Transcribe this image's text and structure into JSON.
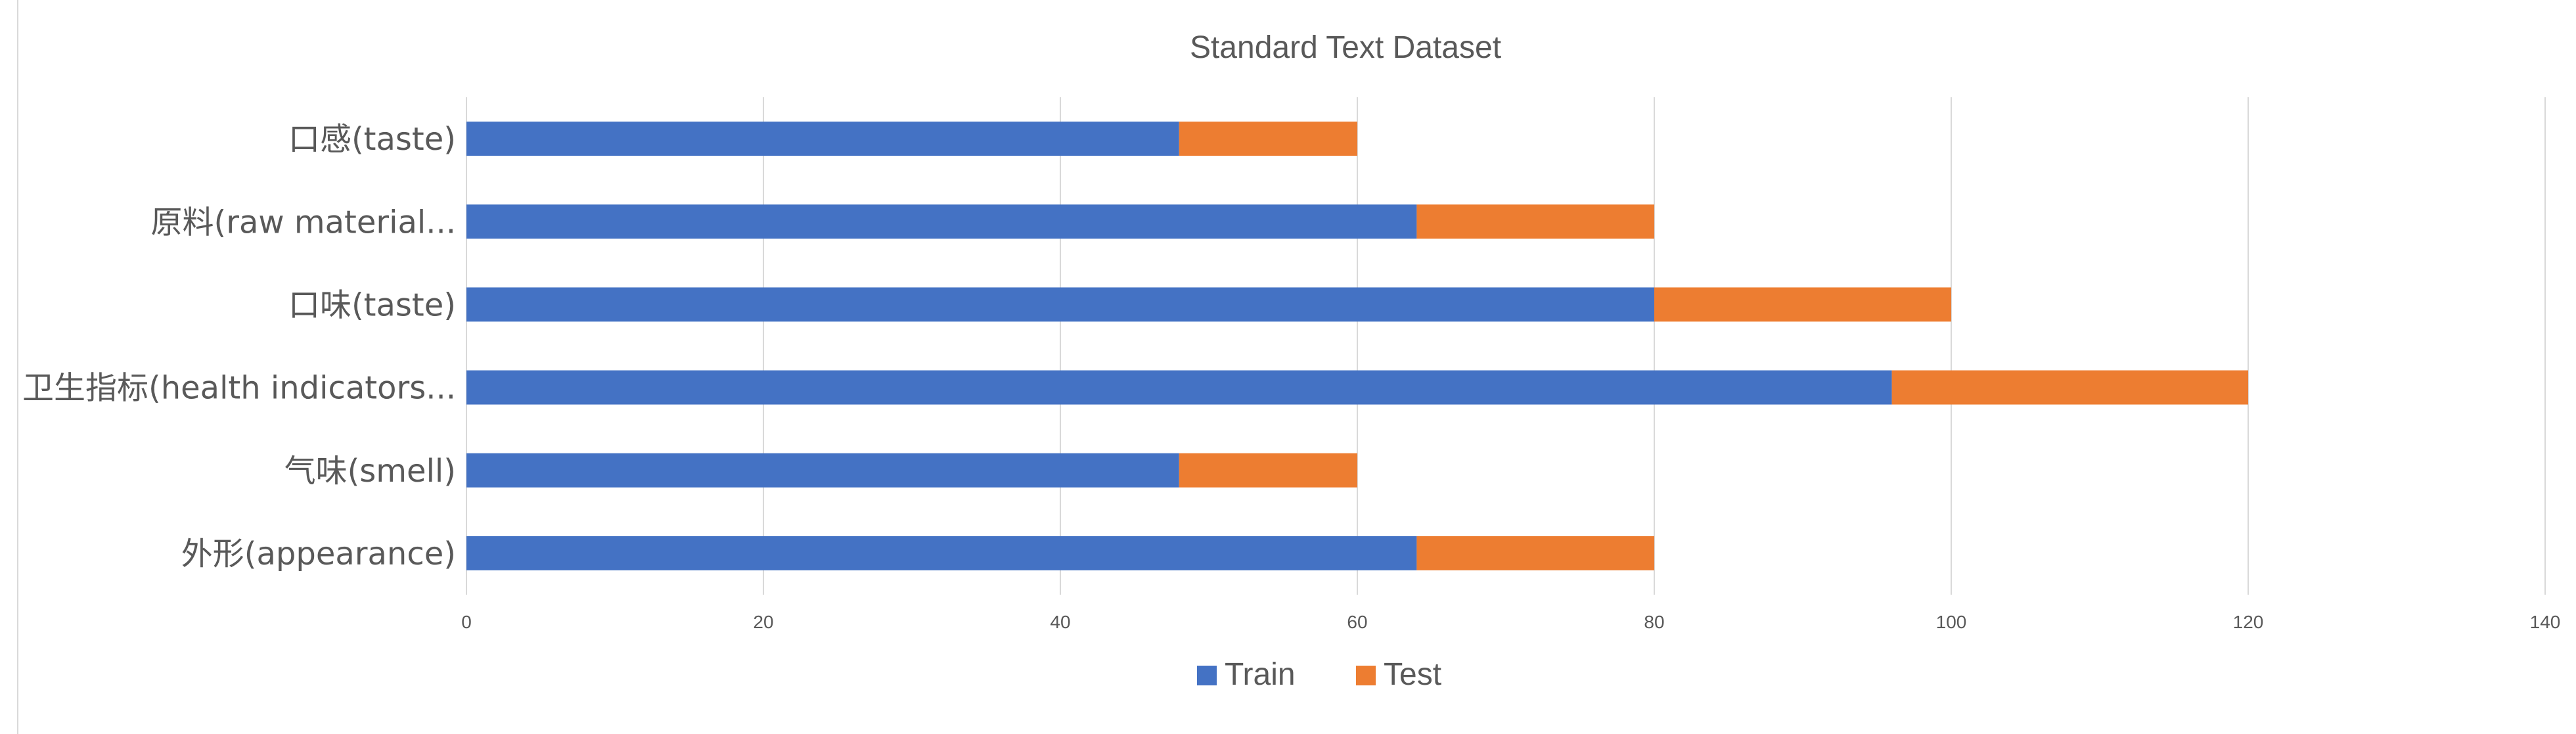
{
  "chart_data": {
    "type": "bar",
    "orientation": "horizontal",
    "stacked": true,
    "title": "Standard Text Dataset",
    "xlabel": "",
    "ylabel": "",
    "categories": [
      "口感(taste)",
      "原料(raw material...",
      "口味(taste)",
      "卫生指标(health indicators...",
      "气味(smell)",
      "外形(appearance)"
    ],
    "series": [
      {
        "name": "Train",
        "color": "#4472C4",
        "values": [
          48,
          64,
          80,
          96,
          48,
          64
        ]
      },
      {
        "name": "Test",
        "color": "#ED7D31",
        "values": [
          12,
          16,
          20,
          24,
          12,
          16
        ]
      }
    ],
    "xlim": [
      0,
      140
    ],
    "xticks": [
      0,
      20,
      40,
      60,
      80,
      100,
      120,
      140
    ],
    "grid": true,
    "legend_position": "bottom"
  }
}
